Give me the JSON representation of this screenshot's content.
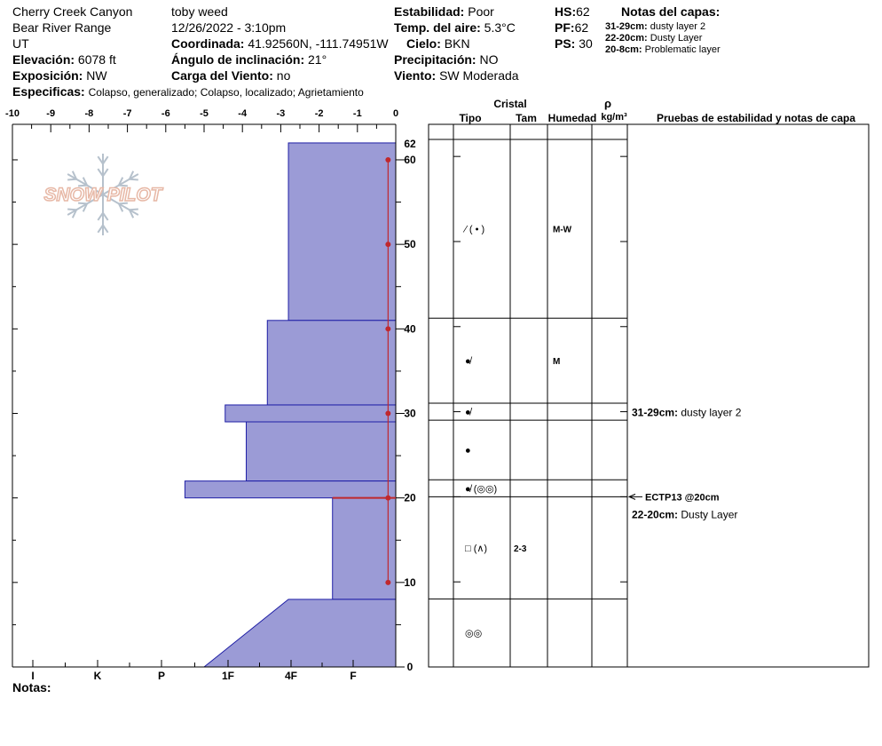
{
  "header": {
    "location": "Cherry Creek Canyon",
    "range": "Bear River Range",
    "state": "UT",
    "elevation_label": "Elevación:",
    "elevation_value": "6078 ft",
    "aspect_label": "Exposición:",
    "aspect_value": "NW",
    "specifics_label": "Especificas:",
    "specifics_value": "Colapso, generalizado; Colapso, localizado; Agrietamiento",
    "observer": "toby weed",
    "datetime": "12/26/2022 - 3:10pm",
    "coord_label": "Coordinada:",
    "coord_value": "41.92560N, -111.74951W",
    "slope_label": "Ángulo de inclinación:",
    "slope_value": "21°",
    "wind_load_label": "Carga del Viento:",
    "wind_load_value": "no",
    "stability_label": "Estabilidad:",
    "stability_value": "Poor",
    "air_temp_label": "Temp. del aire:",
    "air_temp_value": "5.3°C",
    "sky_label": "Cielo:",
    "sky_value": "BKN",
    "precip_label": "Precipitación:",
    "precip_value": "NO",
    "wind_label": "Viento:",
    "wind_value": "SW Moderada",
    "hs_label": "HS:",
    "hs_value": "62",
    "pf_label": "PF:",
    "pf_value": "62",
    "ps_label": "PS:",
    "ps_value": "30",
    "layer_notes_title": "Notas del capas:",
    "layer_notes": [
      {
        "range": "31-29cm:",
        "text": "dusty layer 2"
      },
      {
        "range": "22-20cm:",
        "text": "Dusty Layer"
      },
      {
        "range": "20-8cm:",
        "text": "Problematic layer"
      }
    ]
  },
  "logo_text": "SNOW PILOT",
  "notes_label": "Notas:",
  "chart_data": {
    "type": "bar",
    "title": "",
    "hardness_axis": {
      "top_ticks": [
        "-10",
        "-9",
        "-8",
        "-7",
        "-6",
        "-5",
        "-4",
        "-3",
        "-2",
        "-1",
        "0"
      ],
      "bottom_ticks": [
        "I",
        "K",
        "P",
        "1F",
        "4F",
        "F"
      ],
      "range": [
        -10,
        0
      ]
    },
    "depth_axis": {
      "ticks": [
        "0",
        "10",
        "20",
        "30",
        "40",
        "50",
        "60"
      ],
      "top_label": "62",
      "range": [
        0,
        62
      ]
    },
    "layers": [
      {
        "top": 62,
        "bottom": 41,
        "hardness": -2.8
      },
      {
        "top": 41,
        "bottom": 31,
        "hardness": -3.35
      },
      {
        "top": 31,
        "bottom": 29,
        "hardness": -4.45
      },
      {
        "top": 29,
        "bottom": 22,
        "hardness": -3.9
      },
      {
        "top": 22,
        "bottom": 20,
        "hardness": -5.5
      },
      {
        "top": 20,
        "bottom": 8,
        "hardness": -1.65
      },
      {
        "top": 8,
        "bottom": 0,
        "hardness_top": -2.8,
        "hardness_bottom": -5.0
      }
    ],
    "temperature_profile": {
      "depths": [
        60,
        50,
        40,
        30,
        20,
        10
      ],
      "values": [
        -0.2,
        -0.2,
        -0.2,
        -0.2,
        -0.2,
        -0.2
      ]
    },
    "columns": {
      "crystal": "Cristal",
      "type": "Tipo",
      "size": "Tam",
      "humidity": "Humedad",
      "density_symbol": "ρ",
      "density_unit": "kg/m³",
      "tests": "Pruebas de estabilidad y notas de capa"
    },
    "layer_rows": [
      {
        "top": 62,
        "bottom": 41,
        "crystal": "⁄ ( • )",
        "size": "",
        "humidity": "M-W"
      },
      {
        "top": 41,
        "bottom": 31,
        "crystal": "●̸",
        "size": "",
        "humidity": "M"
      },
      {
        "top": 31,
        "bottom": 29,
        "crystal": "●̸",
        "size": "",
        "humidity": ""
      },
      {
        "top": 29,
        "bottom": 22,
        "crystal": "●",
        "size": "",
        "humidity": ""
      },
      {
        "top": 22,
        "bottom": 20,
        "crystal": "●̸ (◎◎)",
        "size": "",
        "humidity": ""
      },
      {
        "top": 20,
        "bottom": 8,
        "crystal": "□ (∧)",
        "size": "2-3",
        "humidity": ""
      },
      {
        "top": 8,
        "bottom": 0,
        "crystal": "◎◎",
        "size": "",
        "humidity": ""
      }
    ],
    "test_notes": [
      {
        "depth": 30,
        "range": "31-29cm:",
        "text": "dusty layer 2"
      },
      {
        "depth": 20,
        "test": "ECTP13 @20cm"
      },
      {
        "depth": 18,
        "range": "22-20cm:",
        "text": "Dusty Layer"
      }
    ]
  }
}
